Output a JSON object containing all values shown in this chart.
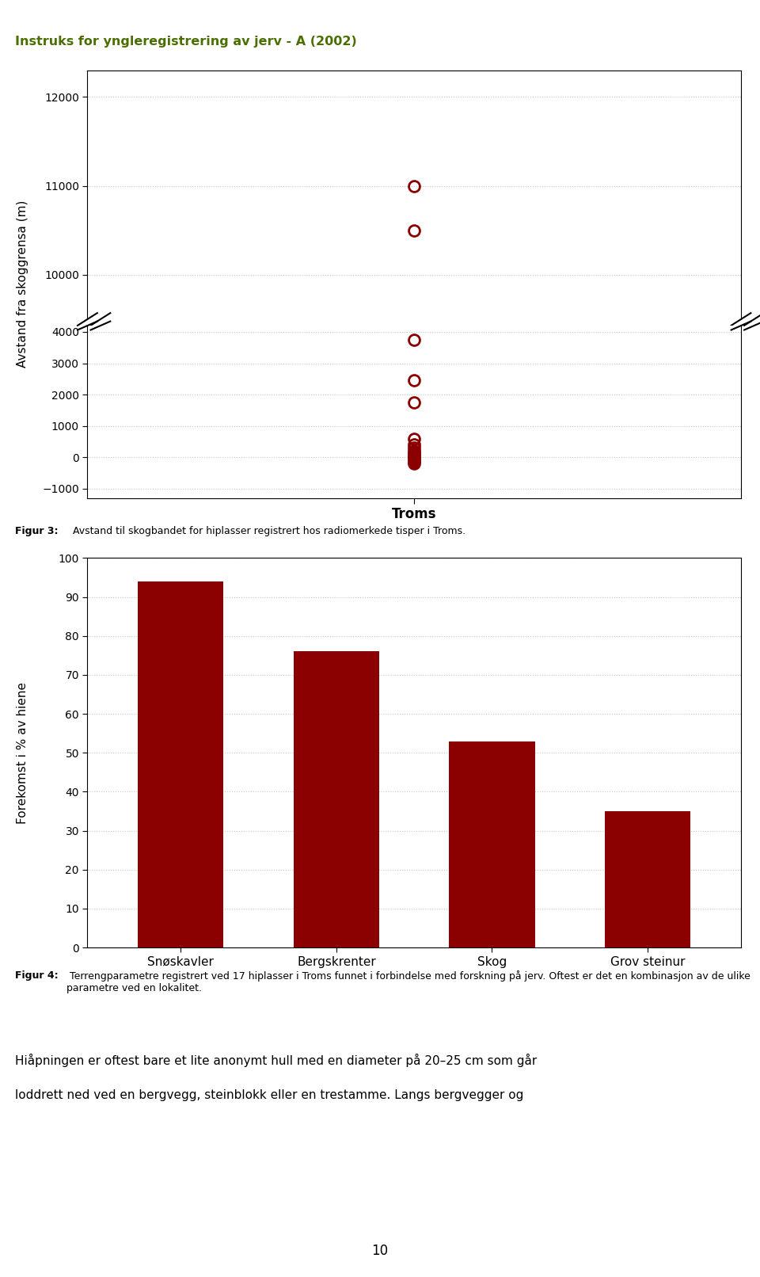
{
  "scatter_points_y": [
    11000,
    10500,
    3750,
    2450,
    1750,
    600,
    400,
    300,
    200,
    150,
    100,
    50,
    0,
    -50,
    -100,
    -150,
    -200
  ],
  "scatter_color": "#8B0000",
  "scatter_xlabel": "Troms",
  "scatter_ylabel": "Avstand fra skoggrensa (m)",
  "bar_categories": [
    "Snøskavler",
    "Bergskrenter",
    "Skog",
    "Grov steinur"
  ],
  "bar_values": [
    94,
    76,
    53,
    35
  ],
  "bar_color": "#8B0000",
  "bar_ylabel": "Forekomst i % av hiene",
  "bar_ylim": [
    0,
    100
  ],
  "bar_yticks": [
    0,
    10,
    20,
    30,
    40,
    50,
    60,
    70,
    80,
    90,
    100
  ],
  "header_text": "Instruks for yngleregistrering av jerv - A (2002)",
  "figur3_caption_bold": "Figur 3:",
  "figur3_caption_rest": " Avstand til skogbandet for hiplasser registrert hos radiomerkede tisper i Troms.",
  "figur4_caption_bold": "Figur 4:",
  "figur4_caption_rest": " Terrengparametre registrert ved 17 hiplasser i Troms funnet i forbindelse med forskning på jerv. Oftest er det en kombinasjon av de ulike parametre ved en lokalitet.",
  "bottom_text_line1": "Hiåpningen er oftest bare et lite anonymt hull med en diameter på 20–25 cm som går",
  "bottom_text_line2": "loddrett ned ved en bergvegg, steinblokk eller en trestamme. Langs bergvegger og",
  "page_number": "10",
  "grid_color": "#c8c8c8",
  "bg_color": "#ffffff",
  "header_color": "#4a6e00"
}
